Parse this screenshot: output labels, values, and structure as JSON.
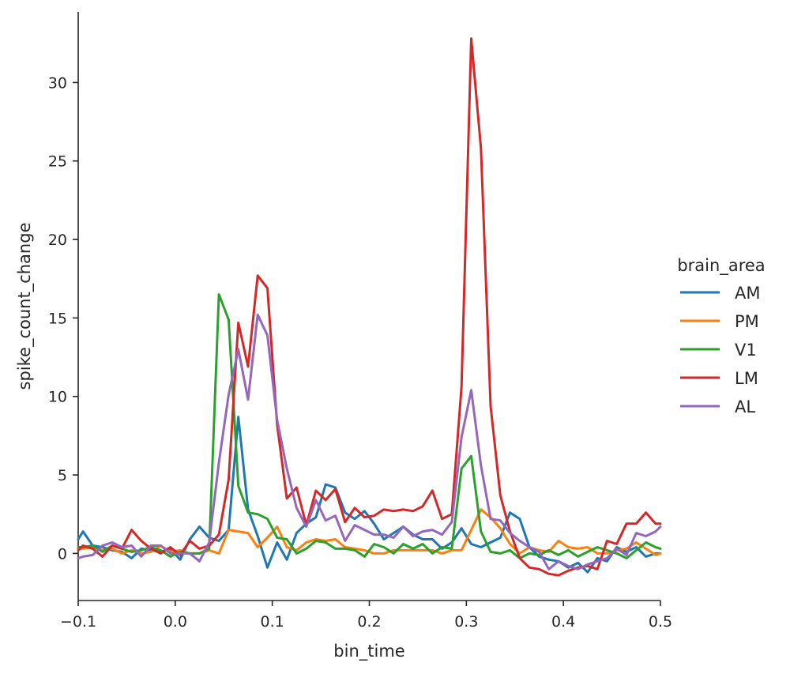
{
  "chart_data": {
    "type": "line",
    "title": "",
    "xlabel": "bin_time",
    "ylabel": "spike_count_change",
    "xlim": [
      -0.1,
      0.5
    ],
    "ylim": [
      -3,
      34.5
    ],
    "xticks": [
      -0.1,
      0.0,
      0.1,
      0.2,
      0.3,
      0.4,
      0.5
    ],
    "xtick_labels": [
      "−0.1",
      "0.0",
      "0.1",
      "0.2",
      "0.3",
      "0.4",
      "0.5"
    ],
    "yticks": [
      0,
      5,
      10,
      15,
      20,
      25,
      30
    ],
    "ytick_labels": [
      "0",
      "5",
      "10",
      "15",
      "20",
      "25",
      "30"
    ],
    "grid": false,
    "legend": {
      "title": "brain_area",
      "placement": "right"
    },
    "x": [
      -0.1,
      -0.095,
      -0.085,
      -0.075,
      -0.065,
      -0.055,
      -0.045,
      -0.035,
      -0.025,
      -0.015,
      -0.005,
      0.005,
      0.015,
      0.025,
      0.035,
      0.045,
      0.055,
      0.065,
      0.075,
      0.085,
      0.095,
      0.105,
      0.115,
      0.125,
      0.135,
      0.145,
      0.155,
      0.165,
      0.175,
      0.185,
      0.195,
      0.205,
      0.215,
      0.225,
      0.235,
      0.245,
      0.255,
      0.265,
      0.275,
      0.285,
      0.295,
      0.305,
      0.315,
      0.325,
      0.335,
      0.345,
      0.355,
      0.365,
      0.375,
      0.385,
      0.395,
      0.405,
      0.415,
      0.425,
      0.435,
      0.445,
      0.455,
      0.465,
      0.475,
      0.485,
      0.495,
      0.5
    ],
    "series": [
      {
        "name": "AM",
        "color": "#1f77b4",
        "values": [
          0.9,
          1.4,
          0.5,
          0.4,
          0.2,
          0.1,
          -0.3,
          0.3,
          0.2,
          0.1,
          0.3,
          -0.4,
          0.9,
          1.7,
          1.0,
          0.8,
          1.5,
          8.7,
          2.8,
          1.1,
          -0.9,
          0.7,
          -0.4,
          1.3,
          1.9,
          2.3,
          4.4,
          4.2,
          2.6,
          2.2,
          2.7,
          1.9,
          0.9,
          1.3,
          1.7,
          1.2,
          0.9,
          0.9,
          0.3,
          0.7,
          1.6,
          0.6,
          0.4,
          0.7,
          1.0,
          2.6,
          2.2,
          0.4,
          -0.2,
          -0.4,
          -0.5,
          -0.9,
          -0.6,
          -1.2,
          -0.3,
          -0.5,
          0.4,
          0.1,
          0.4,
          -0.2,
          0.0,
          0.0
        ]
      },
      {
        "name": "PM",
        "color": "#ff7f0e",
        "values": [
          0.3,
          0.3,
          0.4,
          0.2,
          0.3,
          0.0,
          0.2,
          0.0,
          0.1,
          0.5,
          0.1,
          0.2,
          0.0,
          0.0,
          0.2,
          0.0,
          1.5,
          1.4,
          1.3,
          0.4,
          1.0,
          1.7,
          0.4,
          0.2,
          0.7,
          0.9,
          0.8,
          0.9,
          0.4,
          0.3,
          0.2,
          0.0,
          0.0,
          0.2,
          0.2,
          0.2,
          0.2,
          0.2,
          0.0,
          0.2,
          0.2,
          1.5,
          2.8,
          2.3,
          1.6,
          0.6,
          0.0,
          0.4,
          0.2,
          0.1,
          0.8,
          0.4,
          0.3,
          0.4,
          0.0,
          0.0,
          0.2,
          0.3,
          0.7,
          0.3,
          -0.1,
          0.0
        ]
      },
      {
        "name": "V1",
        "color": "#2ca02c",
        "values": [
          0.4,
          0.4,
          0.5,
          0.1,
          0.5,
          0.3,
          0.1,
          0.2,
          0.4,
          0.2,
          -0.2,
          0.1,
          0.0,
          0.0,
          0.3,
          16.5,
          14.9,
          4.3,
          2.6,
          2.5,
          2.2,
          1.0,
          0.9,
          0.0,
          0.3,
          0.8,
          0.7,
          0.3,
          0.3,
          0.2,
          -0.2,
          0.6,
          0.4,
          0.0,
          0.6,
          0.3,
          0.6,
          0.0,
          0.4,
          0.3,
          5.4,
          6.2,
          1.4,
          0.1,
          0.0,
          0.2,
          -0.3,
          0.0,
          -0.1,
          0.2,
          -0.1,
          0.2,
          -0.2,
          0.1,
          0.4,
          0.2,
          0.0,
          -0.3,
          0.2,
          0.7,
          0.4,
          0.3
        ]
      },
      {
        "name": "LM",
        "color": "#d62728",
        "values": [
          0.2,
          0.5,
          0.3,
          -0.2,
          0.5,
          0.3,
          1.5,
          0.8,
          0.3,
          0.0,
          0.4,
          -0.1,
          0.8,
          0.3,
          0.5,
          1.2,
          4.7,
          14.7,
          11.9,
          17.7,
          16.9,
          8.2,
          3.5,
          4.2,
          1.8,
          4.0,
          3.4,
          4.1,
          2.0,
          2.9,
          2.3,
          2.4,
          2.8,
          2.7,
          2.8,
          2.7,
          3.0,
          4.0,
          2.2,
          2.5,
          10.6,
          32.8,
          25.8,
          9.4,
          3.7,
          1.4,
          -0.3,
          -0.9,
          -1.0,
          -1.3,
          -1.4,
          -1.1,
          -0.9,
          -0.8,
          -1.0,
          0.8,
          0.6,
          1.9,
          1.9,
          2.6,
          1.9,
          1.9
        ]
      },
      {
        "name": "AL",
        "color": "#9467bd",
        "values": [
          -0.3,
          -0.2,
          -0.1,
          0.5,
          0.7,
          0.4,
          0.5,
          -0.2,
          0.5,
          0.5,
          0.0,
          0.0,
          0.0,
          -0.5,
          0.7,
          5.8,
          10.1,
          13.0,
          9.8,
          15.2,
          13.9,
          8.5,
          5.4,
          2.9,
          1.7,
          3.4,
          2.1,
          2.4,
          0.8,
          1.8,
          1.5,
          1.2,
          1.2,
          1.0,
          1.7,
          1.1,
          1.4,
          1.5,
          1.2,
          2.0,
          7.4,
          10.4,
          5.6,
          2.2,
          2.1,
          1.3,
          0.8,
          0.4,
          0.1,
          -1.0,
          -0.5,
          -0.8,
          -1.0,
          -0.7,
          -0.5,
          -0.3,
          0.3,
          -0.1,
          1.3,
          1.1,
          1.4,
          1.7
        ]
      }
    ]
  }
}
